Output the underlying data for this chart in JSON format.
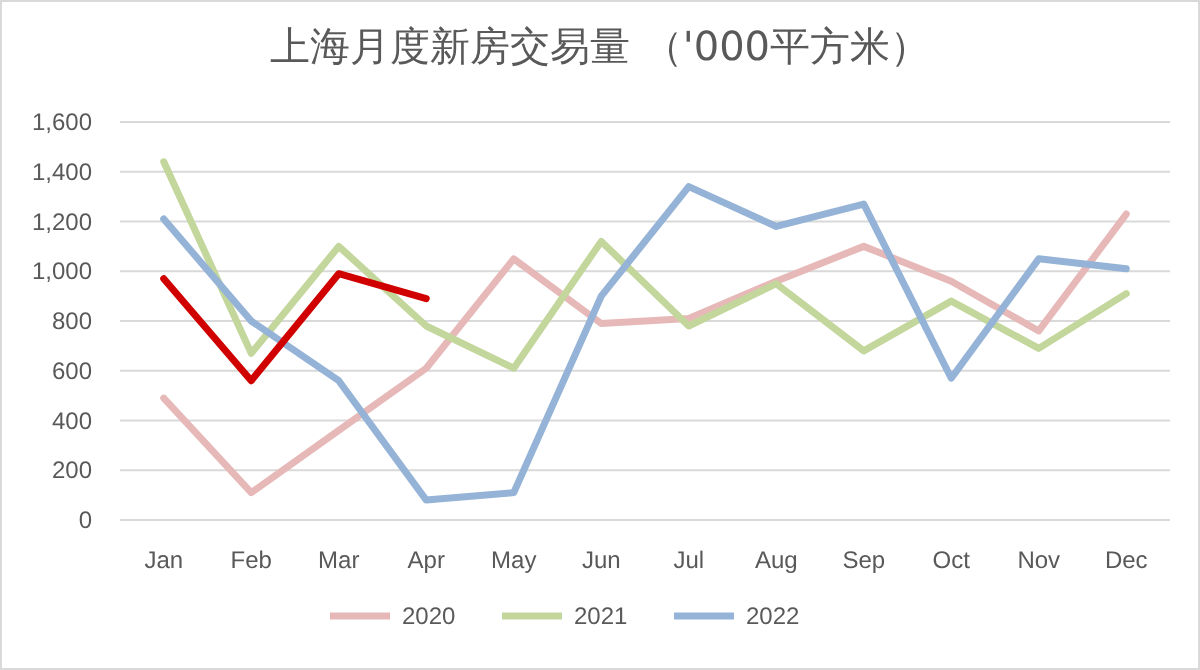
{
  "chart_data": {
    "type": "line",
    "title": "上海月度新房交易量 （'000平方米）",
    "categories": [
      "Jan",
      "Feb",
      "Mar",
      "Apr",
      "May",
      "Jun",
      "Jul",
      "Aug",
      "Sep",
      "Oct",
      "Nov",
      "Dec"
    ],
    "series": [
      {
        "name": "2020",
        "color": "#e6b9b8",
        "values": [
          490,
          110,
          360,
          610,
          1050,
          790,
          810,
          960,
          1100,
          960,
          760,
          1230
        ]
      },
      {
        "name": "2021",
        "color": "#c3d69b",
        "values": [
          1440,
          670,
          1100,
          780,
          610,
          1120,
          780,
          950,
          680,
          880,
          690,
          910
        ]
      },
      {
        "name": "2022",
        "color": "#95b3d7",
        "values": [
          1210,
          800,
          560,
          80,
          110,
          900,
          1340,
          1180,
          1270,
          570,
          1050,
          1010
        ]
      },
      {
        "color": "#d00000",
        "values": [
          970,
          560,
          990,
          890,
          null,
          null,
          null,
          null,
          null,
          null,
          null,
          null
        ]
      }
    ],
    "ylim": [
      0,
      1600
    ],
    "yticks": [
      {
        "value": 0,
        "label": "0"
      },
      {
        "value": 200,
        "label": "200"
      },
      {
        "value": 400,
        "label": "400"
      },
      {
        "value": 600,
        "label": "600"
      },
      {
        "value": 800,
        "label": "800"
      },
      {
        "value": 1000,
        "label": "1,000"
      },
      {
        "value": 1200,
        "label": "1,200"
      },
      {
        "value": 1400,
        "label": "1,400"
      },
      {
        "value": 1600,
        "label": "1,600"
      }
    ],
    "grid": "y",
    "legend": "bottom",
    "marker": "none",
    "line_style": "solid"
  }
}
